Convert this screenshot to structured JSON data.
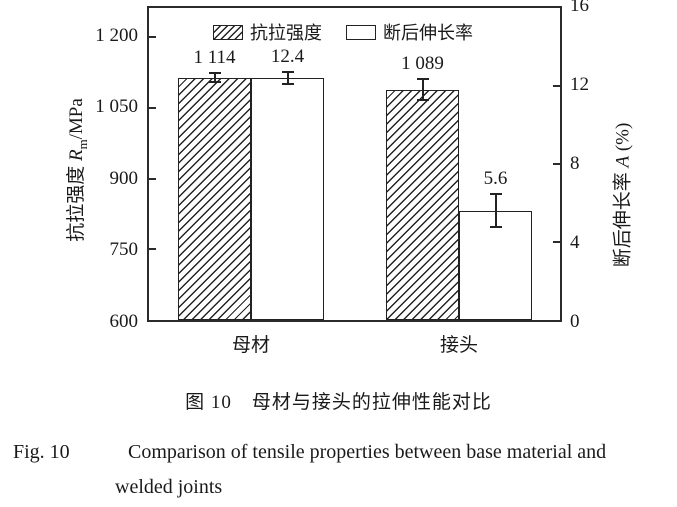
{
  "figure": {
    "caption_zh": "图 10　母材与接头的拉伸性能对比",
    "caption_en_prefix": "Fig. 10",
    "caption_en_line1": "Comparison of tensile properties between base material and",
    "caption_en_line2": "welded joints"
  },
  "chart_data": {
    "type": "bar",
    "categories": [
      "母材",
      "接头"
    ],
    "series": [
      {
        "name": "抗拉强度",
        "axis": "left",
        "style": "hatched",
        "values": [
          1114,
          1089
        ],
        "errors": [
          10,
          23
        ],
        "value_labels": [
          "1 114",
          "1 089"
        ]
      },
      {
        "name": "断后伸长率",
        "axis": "right",
        "style": "open",
        "values": [
          12.4,
          5.6
        ],
        "errors": [
          0.3,
          0.85
        ],
        "value_labels": [
          "12.4",
          "5.6"
        ]
      }
    ],
    "left_axis": {
      "title_prefix": "抗拉强度 ",
      "title_symbol": "R",
      "title_sub": "m",
      "title_suffix": "/MPa",
      "ticks": [
        600,
        750,
        900,
        1050,
        1200
      ],
      "tick_labels": [
        "600",
        "750",
        "900",
        "1 050",
        "1 200"
      ],
      "range": [
        600,
        1262
      ]
    },
    "right_axis": {
      "title_prefix": "断后伸长率 ",
      "title_symbol": "A",
      "title_suffix": " (%)",
      "ticks": [
        0,
        4,
        8,
        12,
        16
      ],
      "tick_labels": [
        "0",
        "4",
        "8",
        "12",
        "16"
      ],
      "range": [
        0,
        16
      ]
    },
    "legend_position": "top-inside",
    "grid": false,
    "colors": {
      "line": "#2b2b2b",
      "bar_fill": "#ffffff",
      "text": "#1a1a1a"
    }
  }
}
